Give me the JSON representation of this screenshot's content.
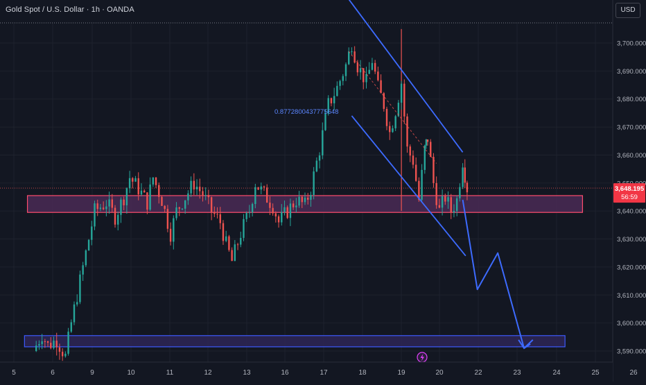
{
  "header": {
    "title": "Gold Spot / U.S. Dollar · 1h · OANDA",
    "currency": "USD"
  },
  "price_tag": {
    "price": "3,648.195",
    "countdown": "56:59"
  },
  "annotation": {
    "fib_label": "0.8772800437775648"
  },
  "event_icon": "lightning-icon",
  "colors": {
    "background": "#131722",
    "up": "#26a69a",
    "down": "#ef5350",
    "channel": "#3d6bff",
    "zone_resistance_border": "#ff4d6d",
    "zone_resistance_fill": "#4a2a55",
    "zone_support_border": "#3d5afe",
    "zone_support_fill": "#2e2656",
    "axis_text": "#b2b5be",
    "grid": "#1e222d"
  },
  "chart_data": {
    "type": "candlestick",
    "title": "Gold Spot / U.S. Dollar · 1h · OANDA",
    "x_unit": "day of month",
    "x_ticks": [
      "5",
      "6",
      "9",
      "10",
      "11",
      "12",
      "13",
      "16",
      "17",
      "18",
      "19",
      "20",
      "22",
      "23",
      "24",
      "25",
      "26"
    ],
    "y_ticks": [
      "3,590.000",
      "3,600.000",
      "3,610.000",
      "3,620.000",
      "3,630.000",
      "3,640.000",
      "3,650.000",
      "3,660.000",
      "3,670.000",
      "3,680.000",
      "3,690.000",
      "3,700.000"
    ],
    "ylim": [
      3586,
      3710
    ],
    "grid": true,
    "last_price": 3648.195,
    "price_path": [
      [
        5.5,
        3590
      ],
      [
        5.8,
        3596
      ],
      [
        6.0,
        3592
      ],
      [
        6.3,
        3594
      ],
      [
        6.6,
        3588
      ],
      [
        6.8,
        3600
      ],
      [
        7.2,
        3620
      ],
      [
        7.6,
        3640
      ],
      [
        8.0,
        3643
      ],
      [
        8.3,
        3638
      ],
      [
        8.6,
        3645
      ],
      [
        8.8,
        3652
      ],
      [
        9.1,
        3648
      ],
      [
        9.4,
        3643
      ],
      [
        9.6,
        3652
      ],
      [
        9.9,
        3644
      ],
      [
        10.2,
        3632
      ],
      [
        10.4,
        3640
      ],
      [
        10.7,
        3645
      ],
      [
        11.0,
        3650
      ],
      [
        11.3,
        3646
      ],
      [
        11.6,
        3640
      ],
      [
        11.9,
        3636
      ],
      [
        12.1,
        3628
      ],
      [
        12.3,
        3622
      ],
      [
        12.6,
        3632
      ],
      [
        12.9,
        3640
      ],
      [
        13.1,
        3650
      ],
      [
        13.4,
        3646
      ],
      [
        13.7,
        3642
      ],
      [
        13.9,
        3636
      ],
      [
        14.2,
        3640
      ],
      [
        14.5,
        3644
      ],
      [
        14.8,
        3642
      ],
      [
        15.0,
        3648
      ],
      [
        15.3,
        3662
      ],
      [
        15.6,
        3678
      ],
      [
        15.9,
        3684
      ],
      [
        16.2,
        3692
      ],
      [
        16.4,
        3700
      ],
      [
        16.6,
        3692
      ],
      [
        16.9,
        3686
      ],
      [
        17.1,
        3694
      ],
      [
        17.3,
        3684
      ],
      [
        17.5,
        3678
      ],
      [
        17.7,
        3668
      ],
      [
        17.9,
        3676
      ],
      [
        18.1,
        3686
      ],
      [
        18.3,
        3662
      ],
      [
        18.5,
        3658
      ],
      [
        18.7,
        3644
      ],
      [
        18.9,
        3662
      ],
      [
        19.0,
        3666
      ],
      [
        19.2,
        3650
      ],
      [
        19.4,
        3640
      ],
      [
        19.6,
        3645
      ],
      [
        19.8,
        3640
      ],
      [
        20.0,
        3644
      ],
      [
        20.2,
        3658
      ],
      [
        20.35,
        3648.195
      ]
    ],
    "zones": [
      {
        "name": "resistance",
        "x0": 5.3,
        "x1": 24.3,
        "y_low": 3639.5,
        "y_high": 3645.5
      },
      {
        "name": "support",
        "x0": 5.2,
        "x1": 23.7,
        "y_low": 3591.5,
        "y_high": 3595.5
      }
    ],
    "channel": {
      "upper": [
        [
          16.2,
          3717
        ],
        [
          20.2,
          3661
        ]
      ],
      "lower": [
        [
          16.4,
          3674
        ],
        [
          20.3,
          3624
        ]
      ]
    },
    "projection": [
      [
        20.2,
        3644
      ],
      [
        20.7,
        3612
      ],
      [
        21.4,
        3625
      ],
      [
        22.3,
        3591
      ],
      [
        22.6,
        3594
      ]
    ],
    "vertical_marker_x": 18.1
  }
}
